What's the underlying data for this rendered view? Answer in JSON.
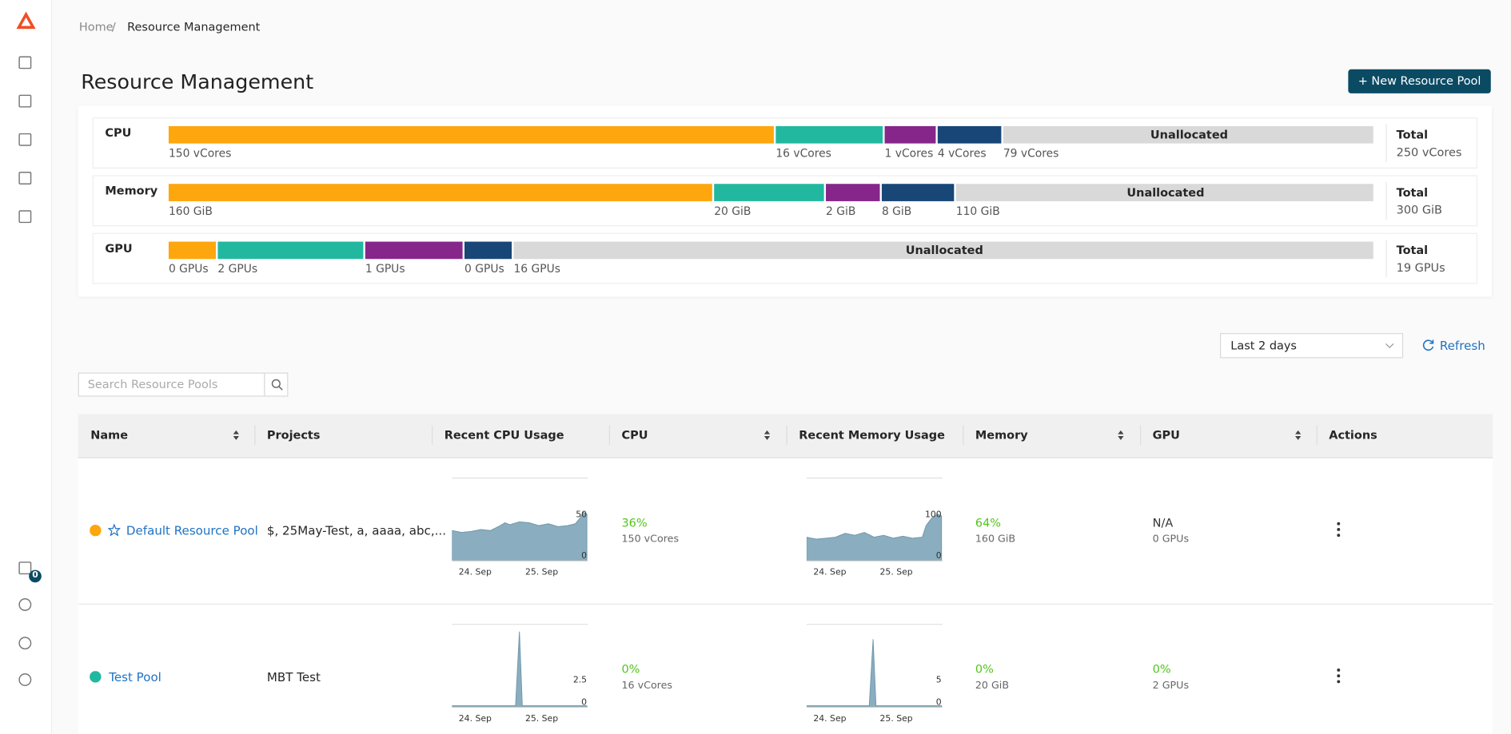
{
  "breadcrumb": [
    "Home",
    "/",
    "Resource Management"
  ],
  "title": "Resource Management",
  "new_button": "New Resource Pool",
  "sidebar_badge": "0",
  "summary": [
    {
      "label": "CPU",
      "segments": [
        "150 vCores",
        "16 vCores",
        "1 vCores",
        "4 vCores",
        "79 vCores"
      ],
      "unallocated": "Unallocated",
      "total_label": "Total",
      "total": "250 vCores"
    },
    {
      "label": "Memory",
      "segments": [
        "160 GiB",
        "20 GiB",
        "2 GiB",
        "8 GiB",
        "110 GiB"
      ],
      "unallocated": "Unallocated",
      "total_label": "Total",
      "total": "300 GiB"
    },
    {
      "label": "GPU",
      "segments": [
        "0 GPUs",
        "2 GPUs",
        "1 GPUs",
        "0 GPUs",
        "16 GPUs"
      ],
      "unallocated": "Unallocated",
      "total_label": "Total",
      "total": "19 GPUs"
    }
  ],
  "time_range": "Last 2 days",
  "refresh": "Refresh",
  "search_placeholder": "Search Resource Pools",
  "columns": [
    "Name",
    "Projects",
    "Recent CPU Usage",
    "CPU",
    "Recent Memory Usage",
    "Memory",
    "GPU",
    "Actions"
  ],
  "rows": [
    {
      "name": "Default Resource Pool",
      "projects": "$, 25May-Test, a, aaaa, abc,...",
      "cpu_chart": {
        "max_label": "50",
        "min_label": "0",
        "dates": [
          "24. Sep",
          "25. Sep"
        ]
      },
      "cpu_pct": "36%",
      "cpu": "150 vCores",
      "memory_chart": {
        "max_label": "100",
        "min_label": "0",
        "dates": [
          "24. Sep",
          "25. Sep"
        ]
      },
      "memory_pct": "64%",
      "memory": "160 GiB",
      "gpu_pct": "N/A",
      "gpu": "0 GPUs"
    },
    {
      "name": "Test Pool",
      "projects": "MBT Test",
      "cpu_chart": {
        "max_label": "2.5",
        "min_label": "0",
        "dates": [
          "24. Sep",
          "25. Sep"
        ]
      },
      "cpu_pct": "0%",
      "cpu": "16 vCores",
      "memory_chart": {
        "max_label": "5",
        "min_label": "0",
        "dates": [
          "24. Sep",
          "25. Sep"
        ]
      },
      "memory_pct": "0%",
      "memory": "20 GiB",
      "gpu_pct": "0%",
      "gpu": "2 GPUs"
    }
  ]
}
